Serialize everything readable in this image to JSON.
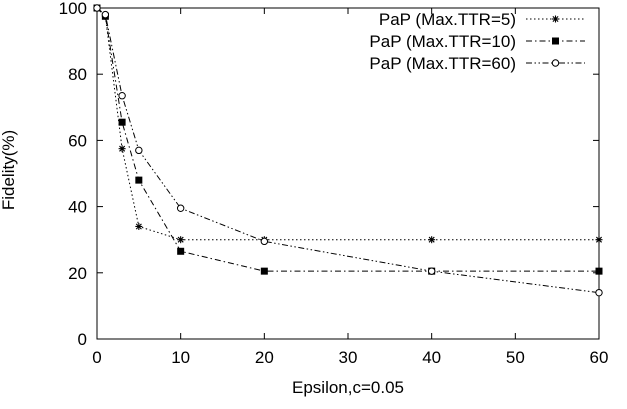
{
  "chart_data": {
    "type": "line",
    "title": "",
    "xlabel": "Epsilon,c=0.05",
    "ylabel": "Fidelity(%)",
    "xlim": [
      0,
      60
    ],
    "ylim": [
      0,
      100
    ],
    "xticks": [
      0,
      10,
      20,
      30,
      40,
      50,
      60
    ],
    "yticks": [
      0,
      20,
      40,
      60,
      80,
      100
    ],
    "grid": false,
    "legend_position": "top-right",
    "series": [
      {
        "name": "PaP (Max.TTR=5)",
        "line_style": "dotted",
        "marker": "asterisk",
        "color": "#000000",
        "x": [
          0,
          1,
          3,
          5,
          10,
          20,
          40,
          60
        ],
        "y": [
          100,
          97.5,
          57.5,
          34,
          30,
          30,
          30,
          30
        ]
      },
      {
        "name": "PaP (Max.TTR=10)",
        "line_style": "dash-dot",
        "marker": "filled-square",
        "color": "#000000",
        "x": [
          0,
          1,
          3,
          5,
          10,
          20,
          40,
          60
        ],
        "y": [
          100,
          97.5,
          65.5,
          48,
          26.5,
          20.5,
          20.5,
          20.5
        ]
      },
      {
        "name": "PaP (Max.TTR=60)",
        "line_style": "dash-dot-dot",
        "marker": "open-circle",
        "color": "#000000",
        "x": [
          0,
          1,
          3,
          5,
          10,
          20,
          40,
          60
        ],
        "y": [
          100,
          98,
          73.5,
          57,
          39.5,
          29.5,
          20.5,
          14
        ]
      }
    ]
  }
}
